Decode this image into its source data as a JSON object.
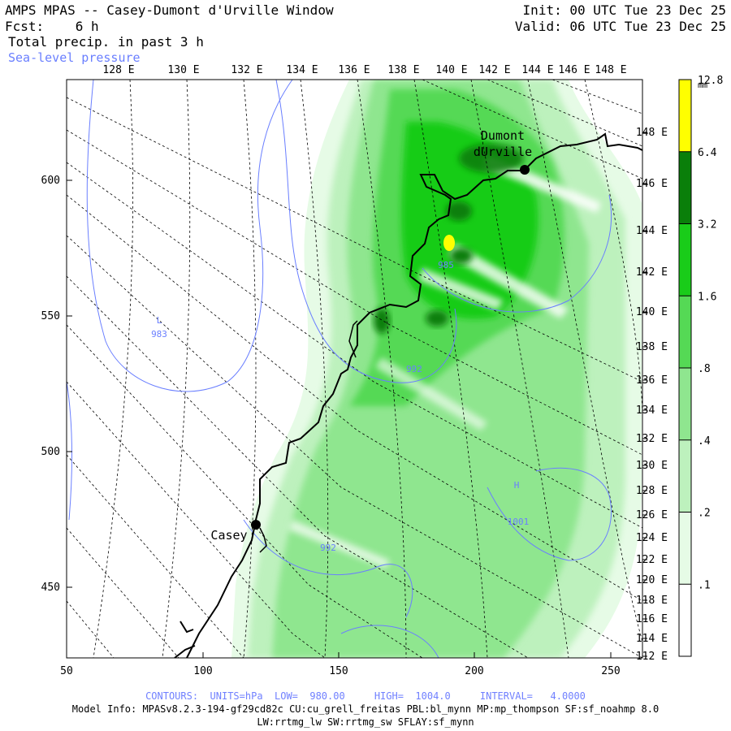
{
  "header": {
    "title": "AMPS MPAS -- Casey-Dumont d'Urville Window",
    "forecast_label": "Fcst:",
    "forecast_value": "6 h",
    "field_name": "Total precip. in past 3 h",
    "overlay_name": "Sea-level pressure",
    "init_time": "Init: 00 UTC Tue 23 Dec 25",
    "valid_time": "Valid: 06 UTC Tue 23 Dec 25"
  },
  "map": {
    "top_lon_labels": [
      "128 E",
      "130 E",
      "132 E",
      "134 E",
      "136 E",
      "138 E",
      "140 E",
      "142 E",
      "144 E",
      "146 E",
      "148 E"
    ],
    "right_lon_labels": [
      "148 E",
      "146 E",
      "144 E",
      "142 E",
      "140 E",
      "138 E",
      "136 E",
      "134 E",
      "132 E",
      "130 E",
      "128 E",
      "126 E",
      "124 E",
      "122 E",
      "120 E",
      "118 E",
      "116 E",
      "114 E",
      "112 E"
    ],
    "x_ticks": [
      "50",
      "100",
      "150",
      "200",
      "250"
    ],
    "y_ticks": [
      "600",
      "550",
      "500",
      "450"
    ],
    "stations": [
      {
        "name": "Casey",
        "lines": [
          "Casey"
        ]
      },
      {
        "name": "Dumont d'Urville",
        "lines": [
          "Dumont",
          "dUrville"
        ]
      }
    ],
    "pressure_labels": [
      {
        "text": "L"
      },
      {
        "text": "983"
      },
      {
        "text": "985"
      },
      {
        "text": "992"
      },
      {
        "text": "992"
      },
      {
        "text": "H"
      },
      {
        "text": "1001"
      }
    ]
  },
  "colorbar": {
    "unit": "mm",
    "levels": [
      ".1",
      ".2",
      ".4",
      ".8",
      "1.6",
      "3.2",
      "6.4",
      "12.8"
    ],
    "colors": [
      "#ffffff",
      "#e6fbe6",
      "#bdf1bd",
      "#8fe68f",
      "#55d955",
      "#19cc19",
      "#0a7f0a",
      "#ffff00"
    ]
  },
  "footer": {
    "contours": "CONTOURS:  UNITS=hPa  LOW=  980.00     HIGH=  1004.0     INTERVAL=   4.0000",
    "model_info": "Model Info: MPASv8.2.3-194-gf29cd82c CU:cu_grell_freitas PBL:bl_mynn MP:mp_thompson SF:sf_noahmp 8.0",
    "model_info2": "LW:rrtmg_lw SW:rrtmg_sw SFLAY:sf_mynn"
  }
}
